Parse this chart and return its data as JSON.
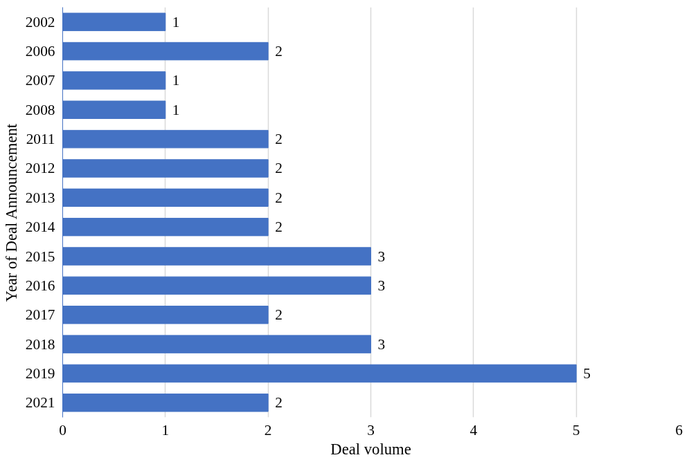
{
  "chart_data": {
    "type": "bar",
    "orientation": "horizontal",
    "xlabel": "Deal volume",
    "ylabel": "Year of Deal Announcement",
    "categories": [
      "2002",
      "2006",
      "2007",
      "2008",
      "2011",
      "2012",
      "2013",
      "2014",
      "2015",
      "2016",
      "2017",
      "2018",
      "2019",
      "2021"
    ],
    "values": [
      1,
      2,
      1,
      1,
      2,
      2,
      2,
      2,
      3,
      3,
      2,
      3,
      5,
      2
    ],
    "color": "#4472c4",
    "xlim": [
      0,
      6
    ],
    "xticks": [
      0,
      1,
      2,
      3,
      4,
      5,
      6
    ],
    "grid": "x",
    "data_labels": true
  }
}
